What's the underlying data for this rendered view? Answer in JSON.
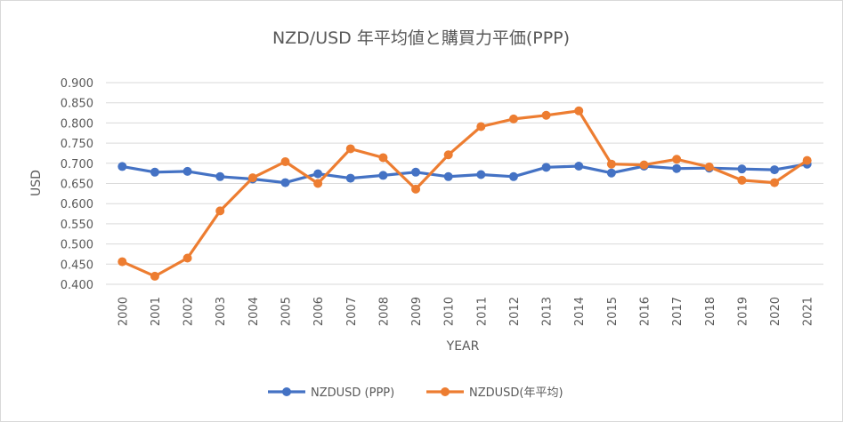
{
  "chart_data": {
    "type": "line",
    "title": "NZD/USD 年平均値と購買力平価(PPP)",
    "xlabel": "YEAR",
    "ylabel": "USD",
    "ylim": [
      0.4,
      0.9
    ],
    "yticks": [
      "0.400",
      "0.450",
      "0.500",
      "0.550",
      "0.600",
      "0.650",
      "0.700",
      "0.750",
      "0.800",
      "0.850",
      "0.900"
    ],
    "grid": true,
    "legend_position": "bottom",
    "categories": [
      "2000",
      "2001",
      "2002",
      "2003",
      "2004",
      "2005",
      "2006",
      "2007",
      "2008",
      "2009",
      "2010",
      "2011",
      "2012",
      "2013",
      "2014",
      "2015",
      "2016",
      "2017",
      "2018",
      "2019",
      "2020",
      "2021"
    ],
    "series": [
      {
        "name": "NZDUSD (PPP)",
        "color": "#4472C4",
        "values": [
          0.692,
          0.678,
          0.68,
          0.667,
          0.661,
          0.652,
          0.674,
          0.663,
          0.67,
          0.678,
          0.667,
          0.672,
          0.667,
          0.69,
          0.693,
          0.676,
          0.693,
          0.687,
          0.688,
          0.686,
          0.684,
          0.698
        ]
      },
      {
        "name": "NZDUSD(年平均)",
        "color": "#ED7D31",
        "values": [
          0.456,
          0.42,
          0.465,
          0.582,
          0.664,
          0.704,
          0.65,
          0.736,
          0.714,
          0.636,
          0.721,
          0.791,
          0.81,
          0.819,
          0.83,
          0.698,
          0.696,
          0.71,
          0.691,
          0.658,
          0.652,
          0.707
        ]
      }
    ]
  }
}
